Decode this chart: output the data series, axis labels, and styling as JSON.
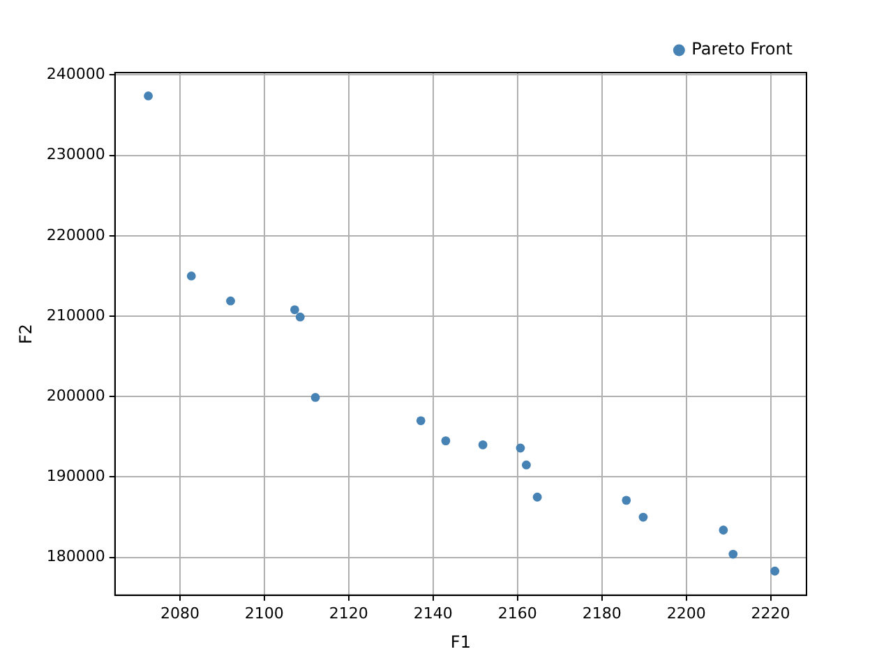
{
  "chart_data": {
    "type": "scatter",
    "xlabel": "F1",
    "ylabel": "F2",
    "x": [
      2072.5,
      2082.7,
      2092,
      2107.2,
      2108.5,
      2112.1,
      2137.1,
      2143,
      2151.8,
      2160.7,
      2162.1,
      2164.7,
      2185.8,
      2189.8,
      2208.8,
      2211.1,
      2221
    ],
    "series": [
      {
        "name": "Pareto Front",
        "color": "#4682b4",
        "values": [
          237400,
          215000,
          211900,
          210800,
          209900,
          199900,
          197000,
          194500,
          194000,
          193600,
          191500,
          187500,
          187100,
          185000,
          183400,
          180400,
          178300
        ]
      }
    ],
    "xlim": [
      2064.6,
      2228.5
    ],
    "xticks": [
      2080,
      2100,
      2120,
      2140,
      2160,
      2180,
      2200,
      2220
    ],
    "ylim": [
      175300,
      240300
    ],
    "yticks": [
      180000,
      190000,
      200000,
      210000,
      220000,
      230000,
      240000
    ],
    "grid": true,
    "legend": "top right",
    "marker": "circle"
  }
}
